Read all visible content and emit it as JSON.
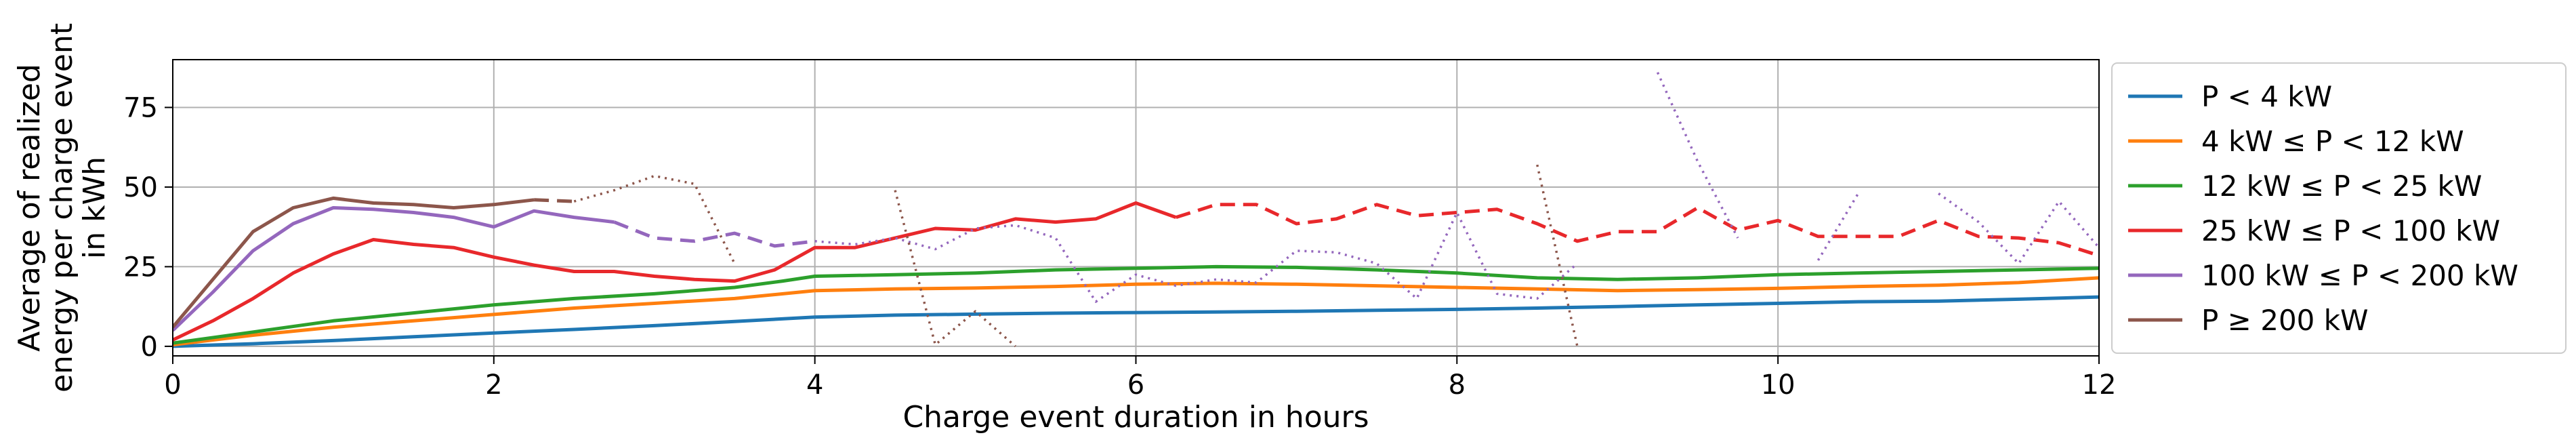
{
  "chart_data": {
    "type": "line",
    "xlabel": "Charge event duration in hours",
    "ylabel_lines": [
      "Average of realized",
      "energy per charge event",
      "in kWh"
    ],
    "xlim": [
      0,
      12
    ],
    "ylim": [
      -3,
      90
    ],
    "xticks": [
      0,
      2,
      4,
      6,
      8,
      10,
      12
    ],
    "yticks": [
      0,
      25,
      50,
      75
    ],
    "grid": true,
    "legend_placement": "outside-right",
    "series": [
      {
        "name": "P < 4 kW",
        "color": "#1f77b4",
        "segments": [
          {
            "style": "solid",
            "points": [
              [
                0,
                0
              ],
              [
                0.5,
                0.8
              ],
              [
                1,
                1.8
              ],
              [
                1.5,
                3
              ],
              [
                2,
                4.2
              ],
              [
                2.5,
                5.3
              ],
              [
                3,
                6.5
              ],
              [
                3.5,
                7.8
              ],
              [
                4,
                9.2
              ],
              [
                4.5,
                9.8
              ],
              [
                5,
                10.1
              ],
              [
                5.5,
                10.4
              ],
              [
                6,
                10.6
              ],
              [
                6.5,
                10.8
              ],
              [
                7,
                11
              ],
              [
                7.5,
                11.3
              ],
              [
                8,
                11.6
              ],
              [
                8.5,
                12
              ],
              [
                9,
                12.5
              ],
              [
                9.5,
                13
              ],
              [
                10,
                13.5
              ],
              [
                10.5,
                14
              ],
              [
                11,
                14.2
              ],
              [
                11.5,
                14.8
              ],
              [
                12,
                15.5
              ]
            ]
          }
        ]
      },
      {
        "name": "4 kW ≤ P < 12 kW",
        "color": "#ff7f0e",
        "segments": [
          {
            "style": "solid",
            "points": [
              [
                0,
                0.5
              ],
              [
                0.5,
                3.5
              ],
              [
                1,
                6
              ],
              [
                1.5,
                8
              ],
              [
                2,
                10
              ],
              [
                2.5,
                12
              ],
              [
                3,
                13.5
              ],
              [
                3.5,
                15
              ],
              [
                4,
                17.5
              ],
              [
                4.5,
                18
              ],
              [
                5,
                18.3
              ],
              [
                5.5,
                18.8
              ],
              [
                6,
                19.5
              ],
              [
                6.5,
                19.8
              ],
              [
                7,
                19.5
              ],
              [
                7.5,
                19
              ],
              [
                8,
                18.5
              ],
              [
                8.5,
                18
              ],
              [
                9,
                17.5
              ],
              [
                9.5,
                17.8
              ],
              [
                10,
                18.2
              ],
              [
                10.5,
                18.8
              ],
              [
                11,
                19.2
              ],
              [
                11.5,
                20
              ],
              [
                12,
                21.5
              ]
            ]
          }
        ]
      },
      {
        "name": "12 kW ≤ P < 25 kW",
        "color": "#2ca02c",
        "segments": [
          {
            "style": "solid",
            "points": [
              [
                0,
                1
              ],
              [
                0.5,
                4.5
              ],
              [
                1,
                8
              ],
              [
                1.5,
                10.5
              ],
              [
                2,
                13
              ],
              [
                2.5,
                15
              ],
              [
                3,
                16.5
              ],
              [
                3.5,
                18.5
              ],
              [
                3.8,
                20.5
              ],
              [
                4,
                22
              ],
              [
                4.5,
                22.5
              ],
              [
                5,
                23
              ],
              [
                5.5,
                24
              ],
              [
                6,
                24.5
              ],
              [
                6.5,
                25
              ],
              [
                7,
                24.8
              ],
              [
                7.5,
                24
              ],
              [
                8,
                23
              ],
              [
                8.5,
                21.5
              ],
              [
                9,
                21
              ],
              [
                9.5,
                21.5
              ],
              [
                10,
                22.5
              ],
              [
                10.5,
                23
              ],
              [
                11,
                23.5
              ],
              [
                11.5,
                24
              ],
              [
                12,
                24.5
              ]
            ]
          }
        ]
      },
      {
        "name": "25 kW ≤ P < 100 kW",
        "color": "#e8282b",
        "segments": [
          {
            "style": "solid",
            "points": [
              [
                0,
                2
              ],
              [
                0.25,
                8
              ],
              [
                0.5,
                15
              ],
              [
                0.75,
                23
              ],
              [
                1,
                29
              ],
              [
                1.25,
                33.5
              ],
              [
                1.5,
                32
              ],
              [
                1.75,
                31
              ],
              [
                2,
                28
              ],
              [
                2.25,
                25.5
              ],
              [
                2.5,
                23.5
              ],
              [
                2.75,
                23.5
              ],
              [
                3,
                22
              ],
              [
                3.25,
                21
              ],
              [
                3.5,
                20.5
              ],
              [
                3.75,
                24
              ],
              [
                4,
                31
              ],
              [
                4.25,
                31
              ],
              [
                4.5,
                34
              ],
              [
                4.75,
                37
              ],
              [
                5,
                36.5
              ],
              [
                5.25,
                40
              ],
              [
                5.5,
                39
              ],
              [
                5.75,
                40
              ],
              [
                6,
                45
              ],
              [
                6.25,
                40.5
              ]
            ]
          },
          {
            "style": "dashed",
            "points": [
              [
                6.25,
                40.5
              ],
              [
                6.5,
                44.5
              ],
              [
                6.75,
                44.5
              ],
              [
                7,
                38.5
              ],
              [
                7.25,
                40
              ],
              [
                7.5,
                44.5
              ],
              [
                7.75,
                41
              ],
              [
                8,
                42
              ],
              [
                8.25,
                43
              ],
              [
                8.5,
                38.5
              ],
              [
                8.75,
                33
              ],
              [
                9,
                36
              ],
              [
                9.25,
                36
              ],
              [
                9.5,
                43.5
              ],
              [
                9.75,
                36.5
              ],
              [
                10,
                39.5
              ],
              [
                10.25,
                34.5
              ],
              [
                10.5,
                34.5
              ],
              [
                10.75,
                34.5
              ],
              [
                11,
                39.5
              ],
              [
                11.25,
                34.5
              ],
              [
                11.5,
                34
              ],
              [
                11.75,
                32.5
              ],
              [
                12,
                28.5
              ]
            ]
          }
        ]
      },
      {
        "name": "100 kW ≤ P < 200 kW",
        "color": "#9467bd",
        "segments": [
          {
            "style": "solid",
            "points": [
              [
                0,
                5
              ],
              [
                0.25,
                17
              ],
              [
                0.5,
                30
              ],
              [
                0.75,
                38.5
              ],
              [
                1,
                43.5
              ],
              [
                1.25,
                43
              ],
              [
                1.5,
                42
              ],
              [
                1.75,
                40.5
              ],
              [
                2,
                37.5
              ],
              [
                2.25,
                42.5
              ],
              [
                2.5,
                40.5
              ],
              [
                2.75,
                39
              ]
            ]
          },
          {
            "style": "dashed",
            "points": [
              [
                2.75,
                39
              ],
              [
                3,
                34
              ],
              [
                3.25,
                33
              ],
              [
                3.5,
                35.5
              ],
              [
                3.75,
                31.5
              ],
              [
                4,
                33
              ]
            ]
          },
          {
            "style": "dotted",
            "points": [
              [
                4,
                33
              ],
              [
                4.25,
                32
              ],
              [
                4.5,
                34
              ],
              [
                4.75,
                30.5
              ],
              [
                5,
                37
              ],
              [
                5.25,
                38
              ],
              [
                5.5,
                34
              ],
              [
                5.75,
                14
              ],
              [
                6,
                22.5
              ],
              [
                6.25,
                19
              ],
              [
                6.5,
                21
              ],
              [
                6.75,
                20
              ],
              [
                7,
                30
              ],
              [
                7.25,
                29.5
              ],
              [
                7.5,
                26
              ],
              [
                7.75,
                15
              ],
              [
                8,
                42
              ],
              [
                8.25,
                16.5
              ],
              [
                8.5,
                15
              ],
              [
                8.75,
                26
              ]
            ]
          },
          {
            "style": "dotted",
            "points": [
              [
                9.25,
                86
              ],
              [
                9.5,
                58
              ],
              [
                9.75,
                34
              ]
            ]
          },
          {
            "style": "dotted",
            "points": [
              [
                10.25,
                27
              ],
              [
                10.5,
                48
              ]
            ]
          },
          {
            "style": "dotted",
            "points": [
              [
                11,
                48
              ],
              [
                11.25,
                39
              ],
              [
                11.5,
                26
              ],
              [
                11.75,
                45.5
              ],
              [
                12,
                31
              ]
            ]
          }
        ]
      },
      {
        "name": "P ≥ 200 kW",
        "color": "#8c564b",
        "segments": [
          {
            "style": "solid",
            "points": [
              [
                0,
                6
              ],
              [
                0.25,
                21
              ],
              [
                0.5,
                36
              ],
              [
                0.75,
                43.5
              ],
              [
                1,
                46.5
              ],
              [
                1.25,
                45
              ],
              [
                1.5,
                44.5
              ],
              [
                1.75,
                43.5
              ],
              [
                2,
                44.5
              ],
              [
                2.25,
                46
              ]
            ]
          },
          {
            "style": "dashed",
            "points": [
              [
                2.25,
                46
              ],
              [
                2.5,
                45.5
              ]
            ]
          },
          {
            "style": "dotted",
            "points": [
              [
                2.5,
                45.5
              ],
              [
                2.75,
                49
              ],
              [
                3,
                53.5
              ],
              [
                3.25,
                51
              ],
              [
                3.5,
                26
              ]
            ]
          },
          {
            "style": "dotted",
            "points": [
              [
                4.5,
                49
              ],
              [
                4.75,
                0.5
              ],
              [
                5,
                11
              ],
              [
                5.25,
                0
              ]
            ]
          },
          {
            "style": "dotted",
            "points": [
              [
                8.5,
                57
              ],
              [
                8.75,
                0
              ]
            ]
          }
        ]
      }
    ]
  }
}
